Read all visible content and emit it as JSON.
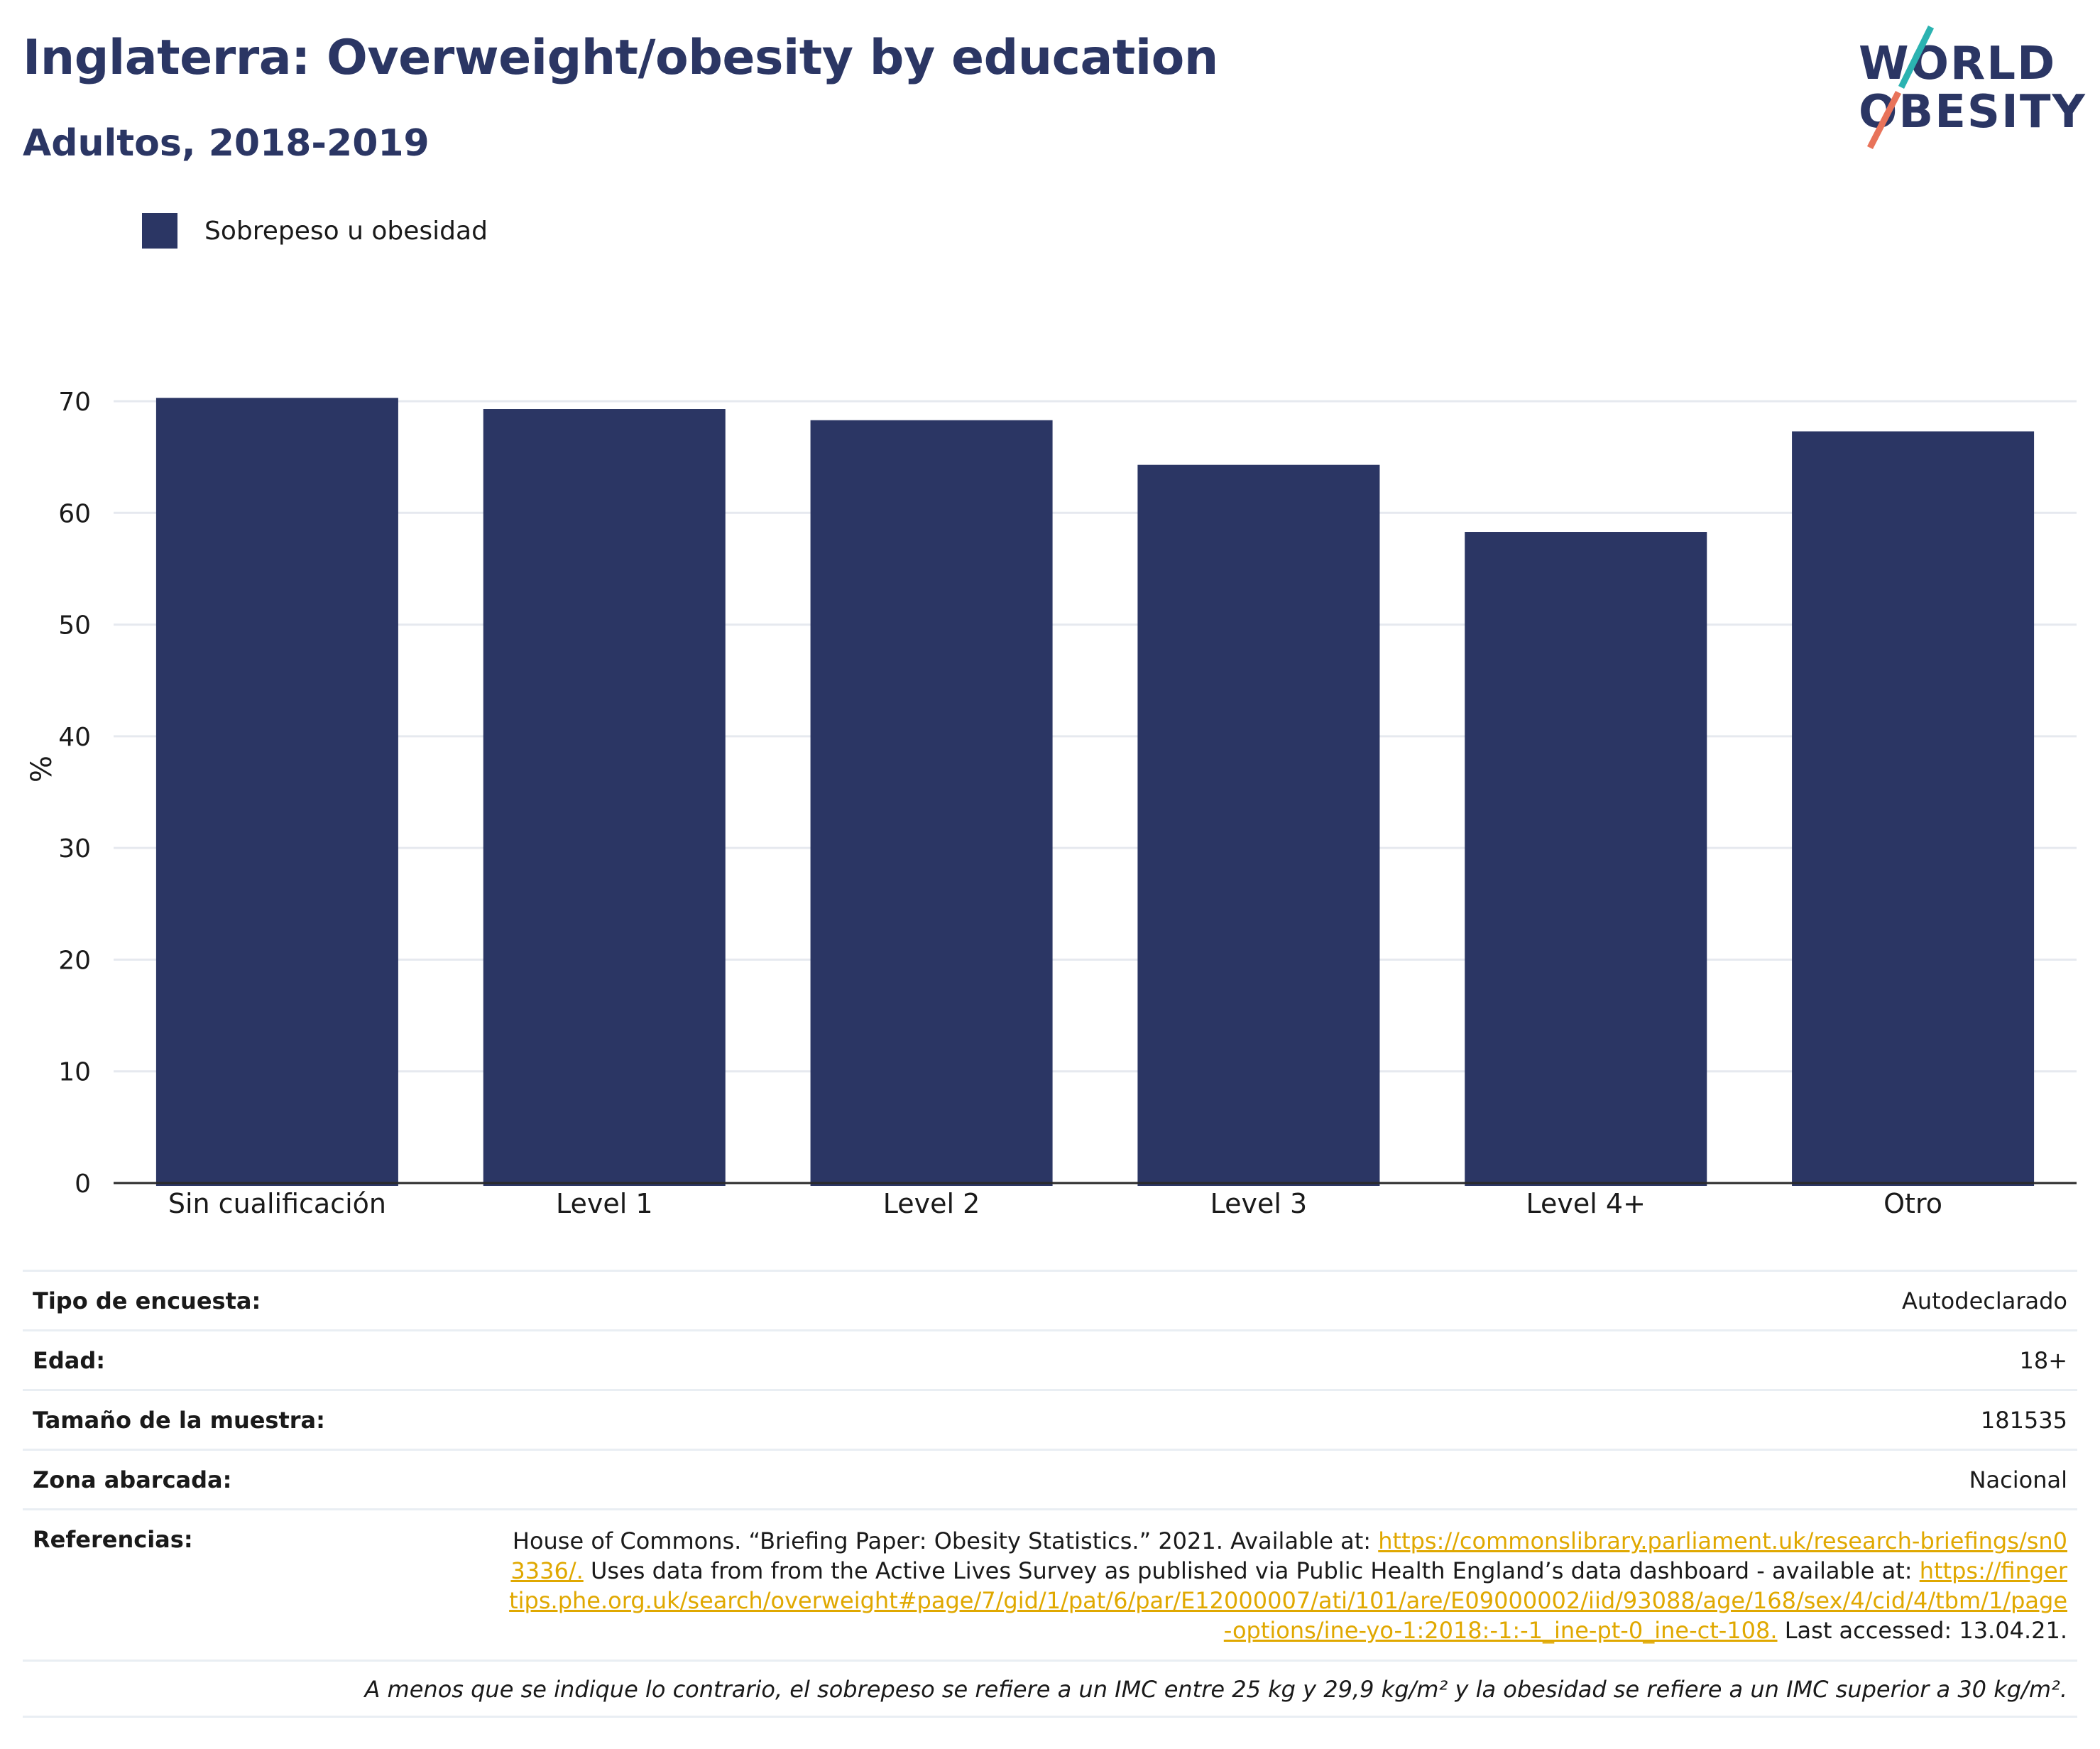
{
  "title": "Inglaterra: Overweight/obesity by education",
  "subtitle": "Adultos, 2018-2019",
  "logo": {
    "line1": "WORLD",
    "line2": "OBESITY"
  },
  "colors": {
    "bar": "#2b3664",
    "grid": "#e6e9ef",
    "link": "#e0a800",
    "logo_slash_teal": "#2bb3b1",
    "logo_slash_coral": "#e8735a"
  },
  "chart_data": {
    "type": "bar",
    "categories": [
      "Sin cualificación",
      "Level 1",
      "Level 2",
      "Level 3",
      "Level 4+",
      "Otro"
    ],
    "series": [
      {
        "name": "Sobrepeso u obesidad",
        "values": [
          70.3,
          69.3,
          68.3,
          64.3,
          58.3,
          67.3
        ]
      }
    ],
    "ylabel": "%",
    "ylim": [
      0,
      70
    ],
    "yticks": [
      0,
      10,
      20,
      30,
      40,
      50,
      60,
      70
    ],
    "grid": true,
    "legend": "top-left"
  },
  "info": {
    "survey_type": {
      "label": "Tipo de encuesta:",
      "value": "Autodeclarado"
    },
    "age": {
      "label": "Edad:",
      "value": "18+"
    },
    "sample_size": {
      "label": "Tamaño de la muestra:",
      "value": "181535"
    },
    "area": {
      "label": "Zona abarcada:",
      "value": "Nacional"
    },
    "references": {
      "label": "Referencias:",
      "text1": "House of Commons. “Briefing Paper: Obesity Statistics.” 2021. Available at: ",
      "link1": "https://commonslibrary.parliament.uk/research-briefings/sn03336/.",
      "text2": " Uses data from from the Active Lives Survey as published via Public Health England’s data dashboard - available at: ",
      "link2": "https://fingertips.phe.org.uk/search/overweight#page/7/gid/1/pat/6/par/E12000007/ati/101/are/E09000002/iid/93088/age/168/sex/4/cid/4/tbm/1/page-options/ine-yo-1:2018:-1:-1_ine-pt-0_ine-ct-108.",
      "text3": " Last accessed: 13.04.21."
    },
    "note": "A menos que se indique lo contrario, el sobrepeso se refiere a un IMC entre 25 kg y 29,9 kg/m² y la obesidad se refiere a un IMC superior a 30 kg/m²."
  }
}
